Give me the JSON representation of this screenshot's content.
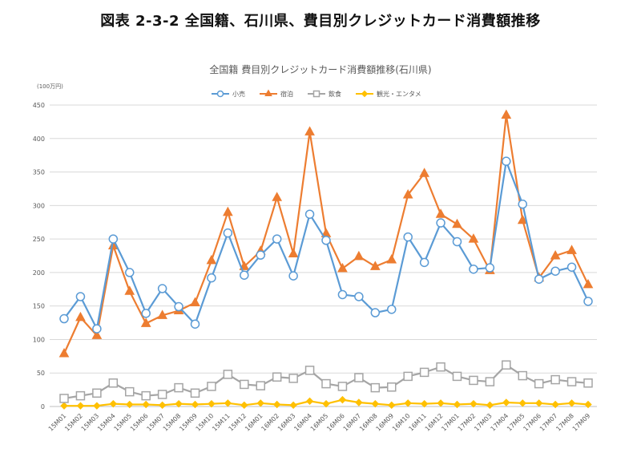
{
  "header": {
    "title": "図表 2-3-2 全国籍、石川県、費目別クレジットカード消費額推移"
  },
  "chart_data": {
    "type": "line",
    "title": "全国籍 費目別クレジットカード消費額推移(石川県)",
    "unit_label": "(100万円)",
    "ylim": [
      0,
      450
    ],
    "yticks": [
      0,
      50,
      100,
      150,
      200,
      250,
      300,
      350,
      400,
      450
    ],
    "grid": true,
    "legend_position": "top",
    "categories": [
      "15M01",
      "15M02",
      "15M03",
      "15M04",
      "15M05",
      "15M06",
      "15M07",
      "15M08",
      "15M09",
      "15M10",
      "15M11",
      "15M12",
      "16M01",
      "16M02",
      "16M03",
      "16M04",
      "16M05",
      "16M06",
      "16M07",
      "16M08",
      "16M09",
      "16M10",
      "16M11",
      "16M12",
      "17M01",
      "17M02",
      "17M03",
      "17M04",
      "17M05",
      "17M06",
      "17M07",
      "17M08",
      "17M09"
    ],
    "series": [
      {
        "name": "小売",
        "color": "#5B9BD5",
        "marker": "circle",
        "values": [
          131,
          164,
          116,
          250,
          200,
          139,
          176,
          149,
          123,
          192,
          259,
          196,
          226,
          250,
          195,
          287,
          248,
          167,
          164,
          140,
          145,
          253,
          215,
          274,
          246,
          205,
          207,
          366,
          302,
          190,
          202,
          208,
          157
        ]
      },
      {
        "name": "宿泊",
        "color": "#ED7D31",
        "marker": "triangle",
        "values": [
          79,
          133,
          106,
          240,
          172,
          124,
          136,
          143,
          155,
          218,
          290,
          209,
          232,
          312,
          228,
          410,
          258,
          206,
          224,
          209,
          219,
          316,
          348,
          287,
          272,
          250,
          203,
          435,
          278,
          192,
          225,
          233,
          182
        ]
      },
      {
        "name": "飲食",
        "color": "#A5A5A5",
        "marker": "square",
        "values": [
          12,
          16,
          20,
          35,
          22,
          16,
          18,
          28,
          20,
          30,
          48,
          33,
          31,
          44,
          42,
          54,
          34,
          30,
          43,
          28,
          29,
          45,
          51,
          59,
          45,
          39,
          37,
          62,
          46,
          34,
          40,
          37,
          35
        ]
      },
      {
        "name": "観光・エンタメ",
        "color": "#FFC000",
        "marker": "diamond",
        "values": [
          1,
          1,
          1,
          4,
          3,
          3,
          2,
          4,
          3,
          4,
          5,
          2,
          5,
          3,
          2,
          8,
          4,
          10,
          6,
          4,
          2,
          5,
          4,
          5,
          3,
          4,
          2,
          6,
          5,
          5,
          3,
          5,
          3
        ]
      }
    ]
  }
}
